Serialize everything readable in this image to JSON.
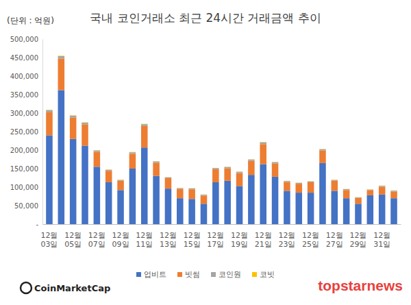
{
  "chart_data": {
    "type": "bar",
    "stacked": true,
    "title": "국내 코인거래소 최근 24시간 거래금액 추이",
    "y_label": "(단위 : 억원)",
    "annotations": [
      "CoinMarketCap",
      "topstarnews"
    ],
    "categories": [
      "12월 03일",
      null,
      "12월 05일",
      null,
      "12월 07일",
      null,
      "12월 09일",
      null,
      "12월 11일",
      null,
      "12월 13일",
      null,
      "12월 15일",
      null,
      "12월 17일",
      null,
      "12월 19일",
      null,
      "12월 21일",
      null,
      "12월 23일",
      null,
      "12월 25일",
      null,
      "12월 27일",
      null,
      "12월 29일",
      null,
      "12월 31일",
      null
    ],
    "series": [
      {
        "name": "업비트",
        "color": "#4472c4",
        "values": [
          240000,
          362000,
          230000,
          212000,
          155000,
          113000,
          92000,
          150000,
          207000,
          130000,
          96000,
          70000,
          68000,
          55000,
          113000,
          117000,
          103000,
          133000,
          162000,
          128000,
          90000,
          85000,
          85000,
          165000,
          90000,
          70000,
          55000,
          78000,
          80000,
          70000
        ]
      },
      {
        "name": "빗썸",
        "color": "#ed7d31",
        "values": [
          62000,
          85000,
          58000,
          57000,
          40000,
          31000,
          25000,
          40000,
          58000,
          36000,
          28000,
          25000,
          26000,
          22000,
          35000,
          34000,
          35000,
          38000,
          54000,
          36000,
          24000,
          24000,
          28000,
          34000,
          27000,
          22000,
          16000,
          14000,
          21000,
          18000
        ]
      },
      {
        "name": "코인원",
        "color": "#a5a5a5",
        "values": [
          6000,
          7000,
          5000,
          5000,
          4000,
          3000,
          2500,
          4000,
          5000,
          3500,
          2500,
          2500,
          2500,
          2500,
          3500,
          3500,
          3500,
          3500,
          5000,
          3500,
          2500,
          2500,
          2500,
          3500,
          2500,
          2500,
          1500,
          1500,
          2500,
          2500
        ]
      },
      {
        "name": "코빗",
        "color": "#ffc000",
        "values": [
          1000,
          1000,
          1000,
          1000,
          1000,
          500,
          500,
          1000,
          1000,
          500,
          500,
          500,
          500,
          500,
          500,
          500,
          500,
          500,
          1000,
          500,
          500,
          500,
          500,
          500,
          500,
          500,
          500,
          500,
          500,
          500
        ]
      }
    ],
    "ylim": [
      0,
      500000
    ],
    "yticks": [
      {
        "value": 0,
        "label": "-"
      },
      {
        "value": 50000,
        "label": "50,000"
      },
      {
        "value": 100000,
        "label": "100,000"
      },
      {
        "value": 150000,
        "label": "150,000"
      },
      {
        "value": 200000,
        "label": "200,000"
      },
      {
        "value": 250000,
        "label": "250,000"
      },
      {
        "value": 300000,
        "label": "300,000"
      },
      {
        "value": 350000,
        "label": "350,000"
      },
      {
        "value": 400000,
        "label": "400,000"
      },
      {
        "value": 450000,
        "label": "450,000"
      },
      {
        "value": 500000,
        "label": "500,000"
      }
    ],
    "grid": false,
    "legend": "bottom"
  }
}
